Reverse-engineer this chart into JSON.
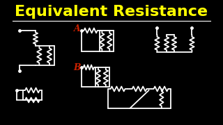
{
  "title": "Equivalent Resistance",
  "title_color": "#FFFF00",
  "bg_color": "#000000",
  "line_color": "#FFFFFF",
  "label_a_color": "#CC2200",
  "label_b_color": "#CC2200",
  "fig_width": 3.2,
  "fig_height": 1.8,
  "dpi": 100
}
